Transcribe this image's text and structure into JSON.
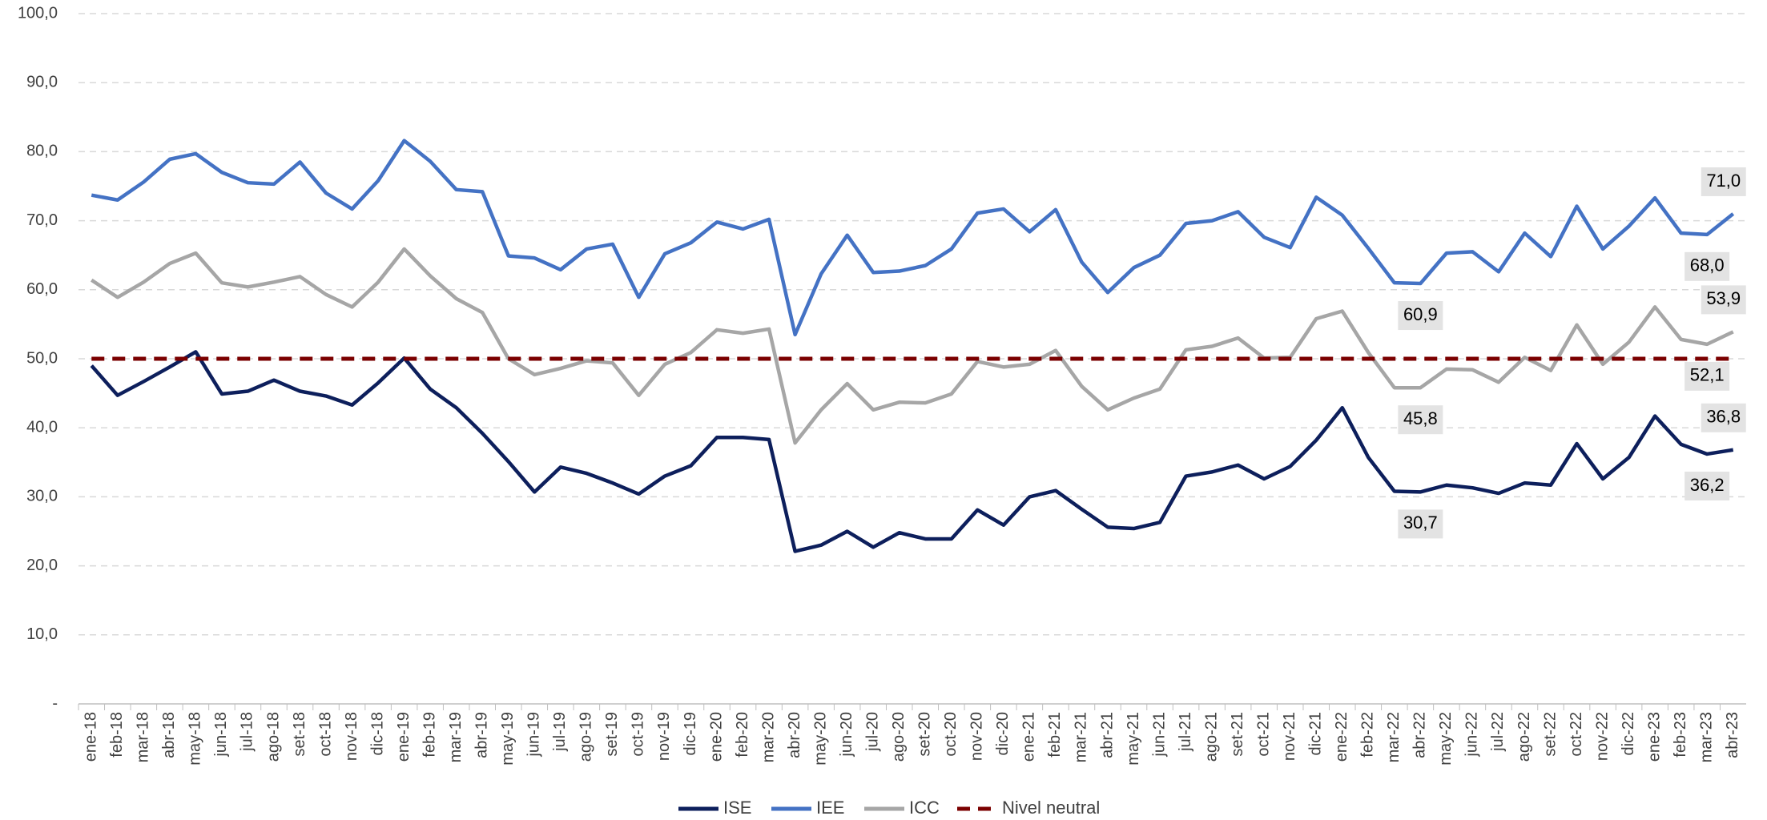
{
  "chart_data": {
    "type": "line",
    "categories": [
      "ene-18",
      "feb-18",
      "mar-18",
      "abr-18",
      "may-18",
      "jun-18",
      "jul-18",
      "ago-18",
      "set-18",
      "oct-18",
      "nov-18",
      "dic-18",
      "ene-19",
      "feb-19",
      "mar-19",
      "abr-19",
      "may-19",
      "jun-19",
      "jul-19",
      "ago-19",
      "set-19",
      "oct-19",
      "nov-19",
      "dic-19",
      "ene-20",
      "feb-20",
      "mar-20",
      "abr-20",
      "may-20",
      "jun-20",
      "jul-20",
      "ago-20",
      "set-20",
      "oct-20",
      "nov-20",
      "dic-20",
      "ene-21",
      "feb-21",
      "mar-21",
      "abr-21",
      "may-21",
      "jun-21",
      "jul-21",
      "ago-21",
      "set-21",
      "oct-21",
      "nov-21",
      "dic-21",
      "ene-22",
      "feb-22",
      "mar-22",
      "abr-22",
      "may-22",
      "jun-22",
      "jul-22",
      "ago-22",
      "set-22",
      "oct-22",
      "nov-22",
      "dic-22",
      "ene-23",
      "feb-23",
      "mar-23",
      "abr-23"
    ],
    "series": [
      {
        "name": "ISE",
        "color": "#0d1f5c",
        "values": [
          49.0,
          44.7,
          46.7,
          48.8,
          51.0,
          44.9,
          45.3,
          46.9,
          45.3,
          44.6,
          43.3,
          46.5,
          50.1,
          45.6,
          42.9,
          39.2,
          35.1,
          30.7,
          34.3,
          33.4,
          32.0,
          30.4,
          33.0,
          34.5,
          38.6,
          38.6,
          38.3,
          22.1,
          23.0,
          25.0,
          22.7,
          24.8,
          23.9,
          23.9,
          28.1,
          25.9,
          30.0,
          30.9,
          28.2,
          25.6,
          25.4,
          26.3,
          33.0,
          33.6,
          34.6,
          32.6,
          34.4,
          38.2,
          42.9,
          35.7,
          30.8,
          30.7,
          31.7,
          31.3,
          30.5,
          32.0,
          31.7,
          37.7,
          32.6,
          35.7,
          41.7,
          37.6,
          36.2,
          36.8
        ],
        "value_labels": [
          null,
          null,
          null,
          null,
          null,
          null,
          null,
          null,
          null,
          null,
          null,
          null,
          null,
          null,
          null,
          null,
          null,
          null,
          null,
          null,
          null,
          null,
          null,
          null,
          null,
          null,
          null,
          null,
          null,
          null,
          null,
          null,
          null,
          null,
          null,
          null,
          null,
          null,
          null,
          null,
          null,
          null,
          null,
          null,
          null,
          null,
          null,
          null,
          null,
          null,
          null,
          "30,7",
          null,
          null,
          null,
          null,
          null,
          null,
          null,
          null,
          null,
          null,
          "36,2",
          "36,8"
        ]
      },
      {
        "name": "IEE",
        "color": "#4472c4",
        "values": [
          73.7,
          73.0,
          75.6,
          78.9,
          79.7,
          77.0,
          75.5,
          75.3,
          78.5,
          74.0,
          71.7,
          75.8,
          81.6,
          78.6,
          74.5,
          74.2,
          64.9,
          64.6,
          62.9,
          65.9,
          66.6,
          58.9,
          65.2,
          66.8,
          69.8,
          68.8,
          70.2,
          53.5,
          62.3,
          67.9,
          62.5,
          62.7,
          63.5,
          65.9,
          71.1,
          71.7,
          68.4,
          71.6,
          64.0,
          59.6,
          63.2,
          65.0,
          69.6,
          70.0,
          71.3,
          67.6,
          66.1,
          73.4,
          70.8,
          66.0,
          61.0,
          60.9,
          65.3,
          65.5,
          62.6,
          68.2,
          64.8,
          72.1,
          65.9,
          69.2,
          73.3,
          68.2,
          68.0,
          71.0
        ],
        "value_labels": [
          null,
          null,
          null,
          null,
          null,
          null,
          null,
          null,
          null,
          null,
          null,
          null,
          null,
          null,
          null,
          null,
          null,
          null,
          null,
          null,
          null,
          null,
          null,
          null,
          null,
          null,
          null,
          null,
          null,
          null,
          null,
          null,
          null,
          null,
          null,
          null,
          null,
          null,
          null,
          null,
          null,
          null,
          null,
          null,
          null,
          null,
          null,
          null,
          null,
          null,
          null,
          "60,9",
          null,
          null,
          null,
          null,
          null,
          null,
          null,
          null,
          null,
          null,
          "68,0",
          "71,0"
        ]
      },
      {
        "name": "ICC",
        "color": "#a6a6a6",
        "values": [
          61.4,
          58.9,
          61.1,
          63.8,
          65.3,
          61.0,
          60.4,
          61.1,
          61.9,
          59.3,
          57.5,
          61.1,
          65.9,
          62.0,
          58.7,
          56.7,
          50.0,
          47.7,
          48.6,
          49.7,
          49.4,
          44.7,
          49.2,
          50.9,
          54.2,
          53.7,
          54.3,
          37.8,
          42.6,
          46.4,
          42.6,
          43.7,
          43.6,
          44.9,
          49.6,
          48.8,
          49.2,
          51.2,
          46.0,
          42.6,
          44.3,
          45.6,
          51.3,
          51.8,
          53.0,
          50.1,
          50.2,
          55.8,
          56.9,
          50.9,
          45.8,
          45.8,
          48.5,
          48.4,
          46.6,
          50.2,
          48.3,
          54.9,
          49.2,
          52.4,
          57.5,
          52.8,
          52.1,
          53.9
        ],
        "value_labels": [
          null,
          null,
          null,
          null,
          null,
          null,
          null,
          null,
          null,
          null,
          null,
          null,
          null,
          null,
          null,
          null,
          null,
          null,
          null,
          null,
          null,
          null,
          null,
          null,
          null,
          null,
          null,
          null,
          null,
          null,
          null,
          null,
          null,
          null,
          null,
          null,
          null,
          null,
          null,
          null,
          null,
          null,
          null,
          null,
          null,
          null,
          null,
          null,
          null,
          null,
          null,
          "45,8",
          null,
          null,
          null,
          null,
          null,
          null,
          null,
          null,
          null,
          null,
          "52,1",
          "53,9"
        ]
      },
      {
        "name": "Nivel neutral",
        "color": "#7b0000",
        "dash": true,
        "values": [
          50,
          50,
          50,
          50,
          50,
          50,
          50,
          50,
          50,
          50,
          50,
          50,
          50,
          50,
          50,
          50,
          50,
          50,
          50,
          50,
          50,
          50,
          50,
          50,
          50,
          50,
          50,
          50,
          50,
          50,
          50,
          50,
          50,
          50,
          50,
          50,
          50,
          50,
          50,
          50,
          50,
          50,
          50,
          50,
          50,
          50,
          50,
          50,
          50,
          50,
          50,
          50,
          50,
          50,
          50,
          50,
          50,
          50,
          50,
          50,
          50,
          50,
          50,
          50
        ]
      }
    ],
    "ylim": [
      0,
      100
    ],
    "yticks": [
      {
        "value": 0,
        "label": "-"
      },
      {
        "value": 10,
        "label": "10,0"
      },
      {
        "value": 20,
        "label": "20,0"
      },
      {
        "value": 30,
        "label": "30,0"
      },
      {
        "value": 40,
        "label": "40,0"
      },
      {
        "value": 50,
        "label": "50,0"
      },
      {
        "value": 60,
        "label": "60,0"
      },
      {
        "value": 70,
        "label": "70,0"
      },
      {
        "value": 80,
        "label": "80,0"
      },
      {
        "value": 90,
        "label": "90,0"
      },
      {
        "value": 100,
        "label": "100,0"
      }
    ],
    "grid": true,
    "legend": "bottom"
  }
}
